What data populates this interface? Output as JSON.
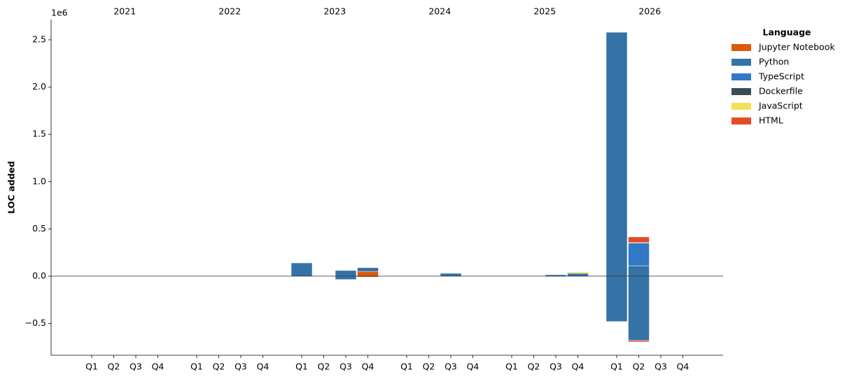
{
  "chart_data": {
    "type": "bar",
    "stacked": true,
    "y_label": "LOC added",
    "y_offset_label": "1e6",
    "legend_title": "Language",
    "legend_position": "outside upper right",
    "ylim": [
      -0.836,
      2.714
    ],
    "yticks": [
      {
        "value": -0.5,
        "label": "−0.5"
      },
      {
        "value": 0,
        "label": "0.0"
      },
      0.5,
      {
        "value": 1,
        "label": "1.0"
      },
      1.5,
      {
        "value": 2,
        "label": "2.0"
      },
      2.5
    ],
    "years": [
      "2021",
      "2022",
      "2023",
      "2024",
      "2025",
      "2026"
    ],
    "categories": [
      "Q1",
      "Q2",
      "Q3",
      "Q4",
      "Q1",
      "Q2",
      "Q3",
      "Q4",
      "Q1",
      "Q2",
      "Q3",
      "Q4",
      "Q1",
      "Q2",
      "Q3",
      "Q4",
      "Q1",
      "Q2",
      "Q3",
      "Q4",
      "Q1",
      "Q2",
      "Q3",
      "Q4"
    ],
    "series": [
      {
        "name": "Jupyter Notebook",
        "color": "#DA5B0B",
        "added": [
          0,
          0,
          0,
          0,
          0,
          0,
          0,
          0,
          0,
          0,
          0,
          0.05,
          0,
          0,
          0,
          0,
          0,
          0,
          0,
          0,
          0,
          0,
          0,
          0
        ],
        "removed": [
          0,
          0,
          0,
          0,
          0,
          0,
          0,
          0,
          0,
          0,
          0,
          -0.01,
          0,
          0,
          0,
          0,
          0,
          0,
          0,
          0,
          0,
          0,
          0,
          0
        ]
      },
      {
        "name": "Python",
        "color": "#3572A5",
        "added": [
          0,
          0,
          0,
          0,
          0,
          0,
          0,
          0,
          0.14,
          0,
          0.06,
          0.04,
          0,
          0,
          0.03,
          0,
          0,
          0,
          0.015,
          0.03,
          2.58,
          0.11,
          0,
          0
        ],
        "removed": [
          0,
          0,
          0,
          0,
          0,
          0,
          0,
          0,
          0,
          0,
          -0.035,
          0,
          0,
          0,
          0,
          0,
          0,
          0,
          -0.005,
          0,
          -0.48,
          -0.68,
          0,
          0
        ]
      },
      {
        "name": "TypeScript",
        "color": "#3178C6",
        "added": [
          0,
          0,
          0,
          0,
          0,
          0,
          0,
          0,
          0,
          0,
          0,
          0,
          0,
          0,
          0,
          0,
          0,
          0,
          0,
          0,
          0,
          0.24,
          0,
          0
        ],
        "removed": [
          0,
          0,
          0,
          0,
          0,
          0,
          0,
          0,
          0,
          0,
          0,
          0,
          0,
          0,
          0,
          0,
          0,
          0,
          0,
          0,
          0,
          0,
          0,
          0
        ]
      },
      {
        "name": "Dockerfile",
        "color": "#384D54",
        "added": [
          0,
          0,
          0,
          0,
          0,
          0,
          0,
          0,
          0,
          0,
          0,
          0,
          0,
          0,
          0,
          0,
          0,
          0,
          0,
          0,
          0,
          0.005,
          0,
          0
        ],
        "removed": [
          0,
          0,
          0,
          0,
          0,
          0,
          0,
          0,
          0,
          0,
          0,
          0,
          0,
          0,
          0,
          0,
          0,
          0,
          0,
          0,
          0,
          0,
          0,
          0
        ]
      },
      {
        "name": "JavaScript",
        "color": "#F1E05A",
        "added": [
          0,
          0,
          0,
          0,
          0,
          0,
          0,
          0,
          0,
          0,
          0,
          0,
          0,
          0,
          0,
          0,
          0,
          0,
          0,
          0.015,
          0,
          0,
          0,
          0
        ],
        "removed": [
          0,
          0,
          0,
          0,
          0,
          0,
          0,
          0,
          0,
          0,
          0,
          0,
          0,
          0,
          0,
          0,
          0,
          0,
          0,
          0,
          0,
          0,
          0,
          0
        ]
      },
      {
        "name": "HTML",
        "color": "#E34C26",
        "added": [
          0,
          0,
          0,
          0,
          0,
          0,
          0,
          0,
          0,
          0,
          0,
          0,
          0,
          0,
          0,
          0,
          0,
          0,
          0,
          0,
          0,
          0.06,
          0,
          0
        ],
        "removed": [
          0,
          0,
          0,
          0,
          0,
          0,
          0,
          0,
          0,
          0,
          0,
          0,
          0,
          0,
          0,
          0,
          0,
          0,
          0,
          0,
          0,
          -0.015,
          0,
          0
        ]
      }
    ]
  }
}
